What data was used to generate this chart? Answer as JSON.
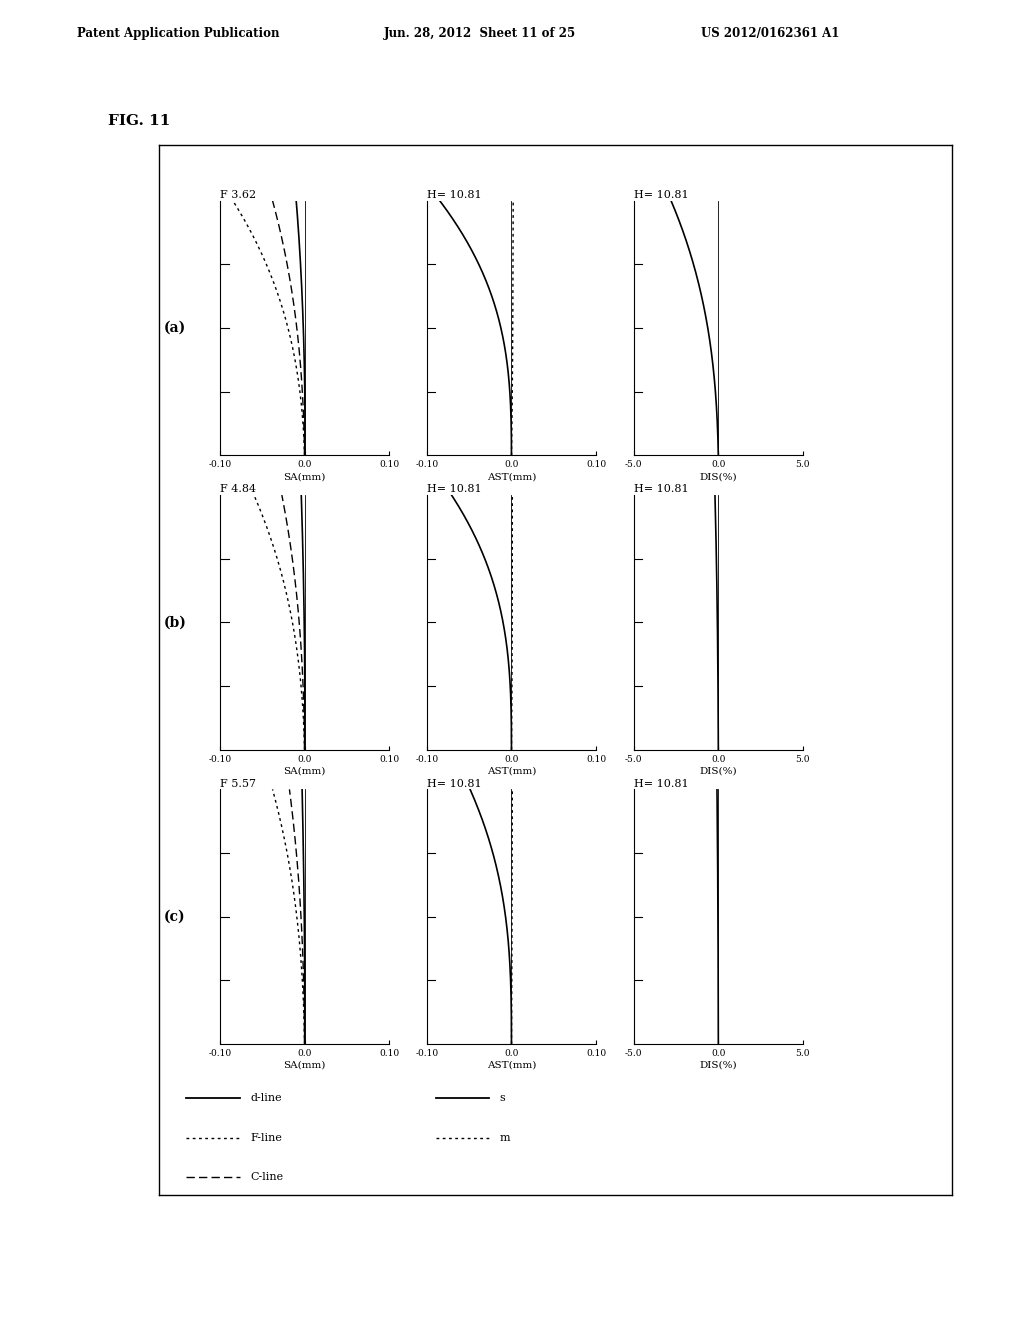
{
  "header_left": "Patent Application Publication",
  "header_mid": "Jun. 28, 2012  Sheet 11 of 25",
  "header_right": "US 2012/0162361 A1",
  "fig_label": "FIG. 11",
  "rows": [
    {
      "label": "(a)",
      "f_value": "F 3.62",
      "h_value": "H= 10.81"
    },
    {
      "label": "(b)",
      "f_value": "F 4.84",
      "h_value": "H= 10.81"
    },
    {
      "label": "(c)",
      "f_value": "F 5.57",
      "h_value": "H= 10.81"
    }
  ],
  "sa_xlim": [
    -0.1,
    0.1
  ],
  "sa_xticks": [
    -0.1,
    0.0,
    0.1
  ],
  "sa_xticklabels": [
    "-0.10",
    "0.0",
    "0.10"
  ],
  "sa_xlabel": "SA(mm)",
  "ast_xlim": [
    -0.1,
    0.1
  ],
  "ast_xticks": [
    -0.1,
    0.0,
    0.1
  ],
  "ast_xticklabels": [
    "-0.10",
    "0.0",
    "0.10"
  ],
  "ast_xlabel": "AST(mm)",
  "dis_xlim": [
    -5.0,
    5.0
  ],
  "dis_xticks": [
    -5.0,
    0.0,
    5.0
  ],
  "dis_xticklabels": [
    "-5.0",
    "0.0",
    "5.0"
  ],
  "dis_xlabel": "DIS(%)",
  "ylim": [
    0.0,
    10.81
  ],
  "ytick_positions": [
    2.7025,
    5.405,
    8.1075
  ],
  "background": "#ffffff"
}
